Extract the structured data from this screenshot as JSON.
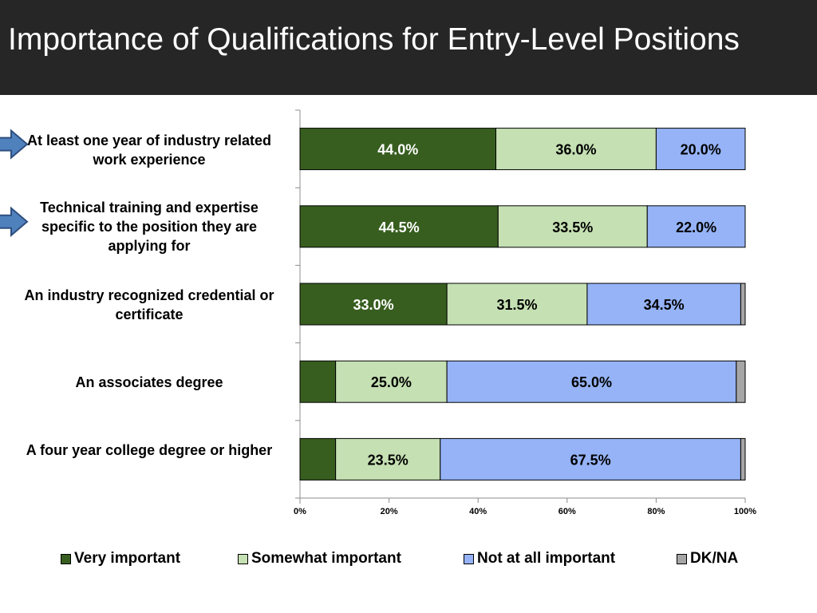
{
  "title": "Importance of Qualifications for Entry-Level Positions",
  "chart_data": {
    "type": "bar",
    "orientation": "horizontal",
    "stacked": true,
    "categories": [
      "At least one year of industry related work experience",
      "Technical training and expertise specific to the position they are applying for",
      "An industry recognized credential or certificate",
      "An associates degree",
      "A four year college degree or higher"
    ],
    "series": [
      {
        "name": "Very important",
        "color": "#375e1f",
        "values": [
          44.0,
          44.5,
          33.0,
          8.0,
          8.0
        ],
        "labels": [
          "44.0%",
          "44.5%",
          "33.0%",
          "",
          ""
        ]
      },
      {
        "name": "Somewhat important",
        "color": "#c5e0b3",
        "values": [
          36.0,
          33.5,
          31.5,
          25.0,
          23.5
        ],
        "labels": [
          "36.0%",
          "33.5%",
          "31.5%",
          "25.0%",
          "23.5%"
        ]
      },
      {
        "name": "Not at all important",
        "color": "#95b3f6",
        "values": [
          20.0,
          22.0,
          34.5,
          65.0,
          67.5
        ],
        "labels": [
          "20.0%",
          "22.0%",
          "34.5%",
          "65.0%",
          "67.5%"
        ]
      },
      {
        "name": "DK/NA",
        "color": "#a6a6a6",
        "values": [
          0.0,
          0.0,
          1.0,
          2.0,
          1.0
        ],
        "labels": [
          "",
          "",
          "",
          "",
          ""
        ]
      }
    ],
    "xlim": [
      0,
      100
    ],
    "xticks": [
      "0%",
      "20%",
      "40%",
      "60%",
      "80%",
      "100%"
    ],
    "legend": "bottom",
    "grid": false,
    "highlighted_categories": [
      0,
      1
    ],
    "highlight_icon": "right-arrow-icon"
  }
}
